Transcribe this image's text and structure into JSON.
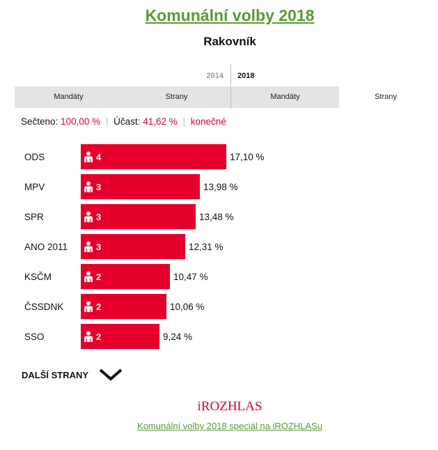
{
  "header": {
    "title": "Komunální volby 2018",
    "subtitle": "Rakovník"
  },
  "years": {
    "previous": "2014",
    "current": "2018"
  },
  "tabs": {
    "y2014_mandaty": "Mandáty",
    "y2014_strany": "Strany",
    "y2018_mandaty": "Mandáty",
    "y2018_strany": "Strany"
  },
  "status": {
    "counted_label": "Sečteno:",
    "counted_value": "100,00 %",
    "turnout_label": "Účast:",
    "turnout_value": "41,62 %",
    "final_label": "konečné"
  },
  "more_label": "DALŠÍ STRANY",
  "logo": "iROZHLAS",
  "footer_link": "Komunální volby 2018 speciál na iROZHLASu",
  "colors": {
    "bar": "#e4002b",
    "accent_green": "#5a9a32"
  },
  "chart_data": {
    "type": "bar",
    "orientation": "horizontal",
    "categories": [
      "ODS",
      "MPV",
      "SPR",
      "ANO 2011",
      "KSČM",
      "ČSSDNK",
      "SSO"
    ],
    "values": [
      17.1,
      13.98,
      13.48,
      12.31,
      10.47,
      10.06,
      9.24
    ],
    "value_labels": [
      "17,10 %",
      "13,98 %",
      "13,48 %",
      "12,31 %",
      "10,47 %",
      "10,06 %",
      "9,24 %"
    ],
    "seats": [
      4,
      3,
      3,
      3,
      2,
      2,
      2
    ],
    "unit": "%",
    "xlim": [
      0,
      17.1
    ]
  }
}
